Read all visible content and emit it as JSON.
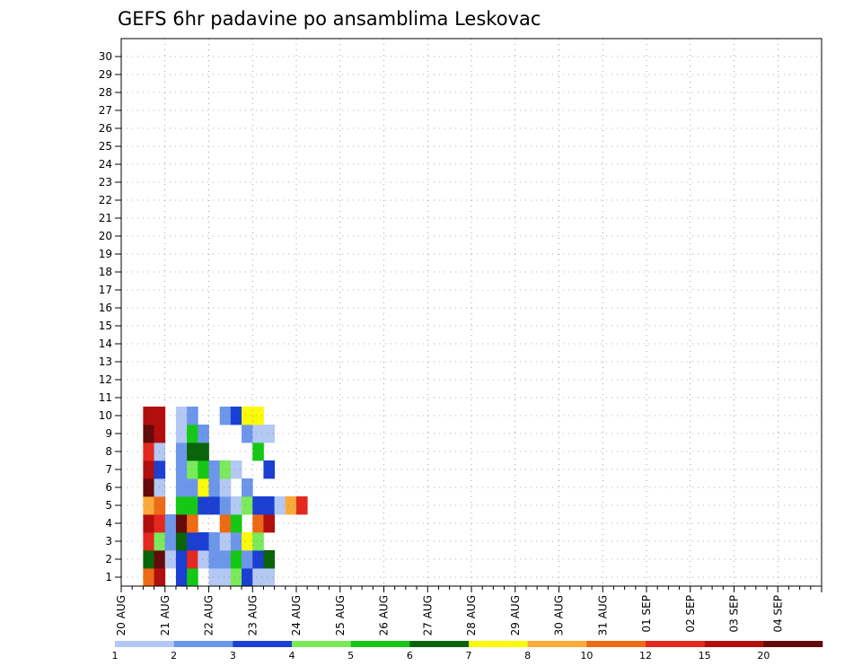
{
  "chart_data": {
    "type": "heatmap",
    "title": "GEFS 6hr padavine po ansamblima Leskovac",
    "y_categories": [
      "1",
      "2",
      "3",
      "4",
      "5",
      "6",
      "7",
      "8",
      "9",
      "10",
      "11",
      "12",
      "13",
      "14",
      "15",
      "16",
      "17",
      "18",
      "19",
      "20",
      "21",
      "22",
      "23",
      "24",
      "25",
      "26",
      "27",
      "28",
      "29",
      "30"
    ],
    "x_tick_labels": [
      "20 AUG",
      "21 AUG",
      "22 AUG",
      "23 AUG",
      "24 AUG",
      "25 AUG",
      "26 AUG",
      "27 AUG",
      "28 AUG",
      "29 AUG",
      "30 AUG",
      "31 AUG",
      "01 SEP",
      "02 SEP",
      "03 SEP",
      "04 SEP"
    ],
    "grid": true,
    "colorbar": {
      "levels": [
        1,
        2,
        3,
        4,
        5,
        6,
        7,
        8,
        10,
        12,
        15,
        20
      ],
      "colors": [
        "#b4c8f4",
        "#6c96ea",
        "#1a3fd2",
        "#7aea5a",
        "#14c814",
        "#0a640a",
        "#fafa0a",
        "#faaa3a",
        "#ef6a14",
        "#e4281e",
        "#b20e0e",
        "#640a0a"
      ]
    },
    "cells": [
      [
        1,
        2,
        9
      ],
      [
        1,
        3,
        11
      ],
      [
        1,
        5,
        3
      ],
      [
        1,
        6,
        5
      ],
      [
        1,
        8,
        1
      ],
      [
        1,
        9,
        1
      ],
      [
        1,
        10,
        4
      ],
      [
        1,
        11,
        3
      ],
      [
        1,
        12,
        1
      ],
      [
        1,
        13,
        1
      ],
      [
        2,
        2,
        6
      ],
      [
        2,
        3,
        12
      ],
      [
        2,
        4,
        1
      ],
      [
        2,
        5,
        3
      ],
      [
        2,
        6,
        10
      ],
      [
        2,
        7,
        1
      ],
      [
        2,
        8,
        2
      ],
      [
        2,
        9,
        2
      ],
      [
        2,
        10,
        5
      ],
      [
        2,
        11,
        2
      ],
      [
        2,
        12,
        3
      ],
      [
        2,
        13,
        6
      ],
      [
        3,
        2,
        10
      ],
      [
        3,
        3,
        4
      ],
      [
        3,
        4,
        2
      ],
      [
        3,
        5,
        6
      ],
      [
        3,
        6,
        3
      ],
      [
        3,
        7,
        3
      ],
      [
        3,
        8,
        2
      ],
      [
        3,
        9,
        1
      ],
      [
        3,
        10,
        2
      ],
      [
        3,
        11,
        7
      ],
      [
        3,
        12,
        4
      ],
      [
        4,
        2,
        11
      ],
      [
        4,
        3,
        10
      ],
      [
        4,
        4,
        2
      ],
      [
        4,
        5,
        12
      ],
      [
        4,
        6,
        9
      ],
      [
        4,
        9,
        9
      ],
      [
        4,
        10,
        5
      ],
      [
        4,
        12,
        9
      ],
      [
        4,
        13,
        11
      ],
      [
        5,
        2,
        8
      ],
      [
        5,
        3,
        9
      ],
      [
        5,
        5,
        5
      ],
      [
        5,
        6,
        5
      ],
      [
        5,
        7,
        3
      ],
      [
        5,
        8,
        3
      ],
      [
        5,
        9,
        2
      ],
      [
        5,
        10,
        1
      ],
      [
        5,
        11,
        4
      ],
      [
        5,
        12,
        3
      ],
      [
        5,
        13,
        3
      ],
      [
        5,
        14,
        1
      ],
      [
        5,
        15,
        8
      ],
      [
        5,
        16,
        10
      ],
      [
        6,
        2,
        12
      ],
      [
        6,
        3,
        1
      ],
      [
        6,
        5,
        2
      ],
      [
        6,
        6,
        2
      ],
      [
        6,
        7,
        7
      ],
      [
        6,
        8,
        2
      ],
      [
        6,
        9,
        1
      ],
      [
        6,
        11,
        2
      ],
      [
        7,
        2,
        11
      ],
      [
        7,
        3,
        3
      ],
      [
        7,
        5,
        2
      ],
      [
        7,
        6,
        4
      ],
      [
        7,
        7,
        5
      ],
      [
        7,
        8,
        2
      ],
      [
        7,
        9,
        4
      ],
      [
        7,
        10,
        1
      ],
      [
        7,
        13,
        3
      ],
      [
        8,
        2,
        10
      ],
      [
        8,
        3,
        1
      ],
      [
        8,
        5,
        2
      ],
      [
        8,
        6,
        6
      ],
      [
        8,
        7,
        6
      ],
      [
        8,
        12,
        5
      ],
      [
        9,
        2,
        12
      ],
      [
        9,
        3,
        11
      ],
      [
        9,
        5,
        1
      ],
      [
        9,
        6,
        5
      ],
      [
        9,
        7,
        2
      ],
      [
        9,
        11,
        2
      ],
      [
        9,
        12,
        1
      ],
      [
        9,
        13,
        1
      ],
      [
        10,
        2,
        11
      ],
      [
        10,
        3,
        11
      ],
      [
        10,
        5,
        1
      ],
      [
        10,
        6,
        2
      ],
      [
        10,
        9,
        2
      ],
      [
        10,
        10,
        3
      ],
      [
        10,
        11,
        7
      ],
      [
        10,
        12,
        7
      ]
    ]
  }
}
